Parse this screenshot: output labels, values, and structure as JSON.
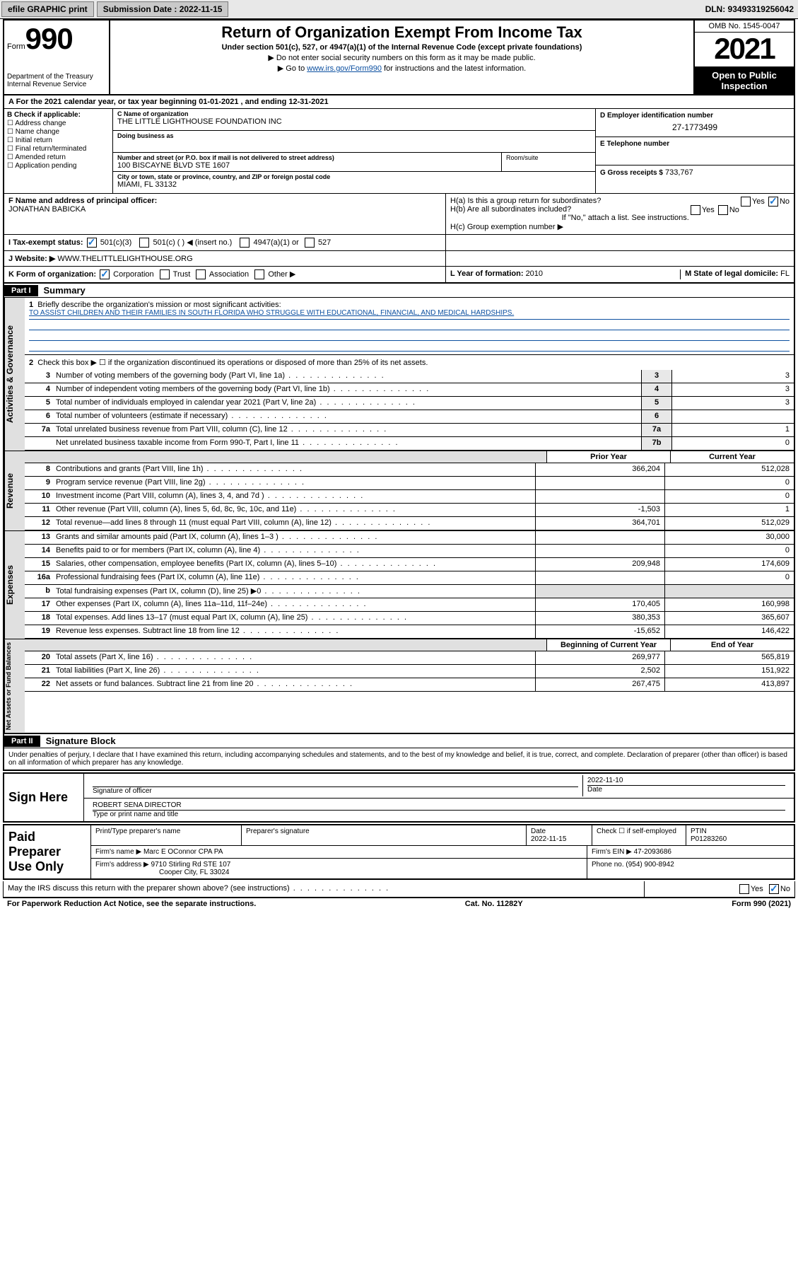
{
  "topbar": {
    "efile": "efile GRAPHIC print",
    "submission_label": "Submission Date : 2022-11-15",
    "dln": "DLN: 93493319256042"
  },
  "header": {
    "form_prefix": "Form",
    "form_num": "990",
    "dept": "Department of the Treasury",
    "irs": "Internal Revenue Service",
    "title": "Return of Organization Exempt From Income Tax",
    "sub1": "Under section 501(c), 527, or 4947(a)(1) of the Internal Revenue Code (except private foundations)",
    "sub2": "▶ Do not enter social security numbers on this form as it may be made public.",
    "sub3_pre": "▶ Go to ",
    "sub3_link": "www.irs.gov/Form990",
    "sub3_post": " for instructions and the latest information.",
    "omb": "OMB No. 1545-0047",
    "year": "2021",
    "open": "Open to Public Inspection"
  },
  "rowA": "A For the 2021 calendar year, or tax year beginning 01-01-2021   , and ending 12-31-2021",
  "colB": {
    "head": "B Check if applicable:",
    "items": [
      "Address change",
      "Name change",
      "Initial return",
      "Final return/terminated",
      "Amended return",
      "Application pending"
    ]
  },
  "colC": {
    "name_label": "C Name of organization",
    "name": "THE LITTLE LIGHTHOUSE FOUNDATION INC",
    "dba_label": "Doing business as",
    "dba": "",
    "addr_label": "Number and street (or P.O. box if mail is not delivered to street address)",
    "room_label": "Room/suite",
    "addr": "100 BISCAYNE BLVD STE 1607",
    "city_label": "City or town, state or province, country, and ZIP or foreign postal code",
    "city": "MIAMI, FL  33132"
  },
  "colD": {
    "ein_label": "D Employer identification number",
    "ein": "27-1773499",
    "phone_label": "E Telephone number",
    "phone": "",
    "gross_label": "G Gross receipts $",
    "gross": "733,767"
  },
  "rowF": {
    "label": "F  Name and address of principal officer:",
    "name": "JONATHAN BABICKA"
  },
  "rowH": {
    "ha": "H(a)  Is this a group return for subordinates?",
    "ha_yes": "Yes",
    "ha_no": "No",
    "hb": "H(b)  Are all subordinates included?",
    "hb_yes": "Yes",
    "hb_no": "No",
    "hb_note": "If \"No,\" attach a list. See instructions.",
    "hc": "H(c)  Group exemption number ▶"
  },
  "rowI": {
    "label": "I   Tax-exempt status:",
    "opts": [
      "501(c)(3)",
      "501(c) (  ) ◀ (insert no.)",
      "4947(a)(1) or",
      "527"
    ]
  },
  "rowJ": {
    "label": "J   Website: ▶",
    "value": "WWW.THELITTLELIGHTHOUSE.ORG"
  },
  "rowK": {
    "label": "K Form of organization:",
    "opts": [
      "Corporation",
      "Trust",
      "Association",
      "Other ▶"
    ]
  },
  "rowL": {
    "label": "L Year of formation: ",
    "value": "2010"
  },
  "rowM": {
    "label": "M State of legal domicile: ",
    "value": "FL"
  },
  "part1": {
    "label": "Part I",
    "title": "Summary",
    "side_ag": "Activities & Governance",
    "side_rev": "Revenue",
    "side_exp": "Expenses",
    "side_na": "Net Assets or Fund Balances",
    "q1": "Briefly describe the organization's mission or most significant activities:",
    "mission": "TO ASSIST CHILDREN AND THEIR FAMILIES IN SOUTH FLORIDA WHO STRUGGLE WITH EDUCATIONAL, FINANCIAL, AND MEDICAL HARDSHIPS.",
    "q2": "Check this box ▶ ☐ if the organization discontinued its operations or disposed of more than 25% of its net assets.",
    "lines_ag": [
      {
        "n": "3",
        "d": "Number of voting members of the governing body (Part VI, line 1a)",
        "box": "3",
        "v": "3"
      },
      {
        "n": "4",
        "d": "Number of independent voting members of the governing body (Part VI, line 1b)",
        "box": "4",
        "v": "3"
      },
      {
        "n": "5",
        "d": "Total number of individuals employed in calendar year 2021 (Part V, line 2a)",
        "box": "5",
        "v": "3"
      },
      {
        "n": "6",
        "d": "Total number of volunteers (estimate if necessary)",
        "box": "6",
        "v": ""
      },
      {
        "n": "7a",
        "d": "Total unrelated business revenue from Part VIII, column (C), line 12",
        "box": "7a",
        "v": "1"
      },
      {
        "n": "",
        "d": "Net unrelated business taxable income from Form 990-T, Part I, line 11",
        "box": "7b",
        "v": "0"
      }
    ],
    "prior_label": "Prior Year",
    "current_label": "Current Year",
    "lines_rev": [
      {
        "n": "8",
        "d": "Contributions and grants (Part VIII, line 1h)",
        "p": "366,204",
        "c": "512,028"
      },
      {
        "n": "9",
        "d": "Program service revenue (Part VIII, line 2g)",
        "p": "",
        "c": "0"
      },
      {
        "n": "10",
        "d": "Investment income (Part VIII, column (A), lines 3, 4, and 7d )",
        "p": "",
        "c": "0"
      },
      {
        "n": "11",
        "d": "Other revenue (Part VIII, column (A), lines 5, 6d, 8c, 9c, 10c, and 11e)",
        "p": "-1,503",
        "c": "1"
      },
      {
        "n": "12",
        "d": "Total revenue—add lines 8 through 11 (must equal Part VIII, column (A), line 12)",
        "p": "364,701",
        "c": "512,029"
      }
    ],
    "lines_exp": [
      {
        "n": "13",
        "d": "Grants and similar amounts paid (Part IX, column (A), lines 1–3 )",
        "p": "",
        "c": "30,000"
      },
      {
        "n": "14",
        "d": "Benefits paid to or for members (Part IX, column (A), line 4)",
        "p": "",
        "c": "0"
      },
      {
        "n": "15",
        "d": "Salaries, other compensation, employee benefits (Part IX, column (A), lines 5–10)",
        "p": "209,948",
        "c": "174,609"
      },
      {
        "n": "16a",
        "d": "Professional fundraising fees (Part IX, column (A), line 11e)",
        "p": "",
        "c": "0"
      },
      {
        "n": "b",
        "d": "Total fundraising expenses (Part IX, column (D), line 25) ▶0",
        "p": "",
        "c": "",
        "shaded": true
      },
      {
        "n": "17",
        "d": "Other expenses (Part IX, column (A), lines 11a–11d, 11f–24e)",
        "p": "170,405",
        "c": "160,998"
      },
      {
        "n": "18",
        "d": "Total expenses. Add lines 13–17 (must equal Part IX, column (A), line 25)",
        "p": "380,353",
        "c": "365,607"
      },
      {
        "n": "19",
        "d": "Revenue less expenses. Subtract line 18 from line 12",
        "p": "-15,652",
        "c": "146,422"
      }
    ],
    "begin_label": "Beginning of Current Year",
    "end_label": "End of Year",
    "lines_na": [
      {
        "n": "20",
        "d": "Total assets (Part X, line 16)",
        "p": "269,977",
        "c": "565,819"
      },
      {
        "n": "21",
        "d": "Total liabilities (Part X, line 26)",
        "p": "2,502",
        "c": "151,922"
      },
      {
        "n": "22",
        "d": "Net assets or fund balances. Subtract line 21 from line 20",
        "p": "267,475",
        "c": "413,897"
      }
    ]
  },
  "part2": {
    "label": "Part II",
    "title": "Signature Block",
    "text": "Under penalties of perjury, I declare that I have examined this return, including accompanying schedules and statements, and to the best of my knowledge and belief, it is true, correct, and complete. Declaration of preparer (other than officer) is based on all information of which preparer has any knowledge."
  },
  "sign": {
    "label": "Sign Here",
    "sig_label": "Signature of officer",
    "date_label": "Date",
    "date": "2022-11-10",
    "name": "ROBERT SENA  DIRECTOR",
    "name_label": "Type or print name and title"
  },
  "preparer": {
    "label": "Paid Preparer Use Only",
    "hdr_name": "Print/Type preparer's name",
    "hdr_sig": "Preparer's signature",
    "hdr_date": "Date",
    "date": "2022-11-15",
    "check_label": "Check ☐ if self-employed",
    "ptin_label": "PTIN",
    "ptin": "P01283260",
    "firm_name_label": "Firm's name     ▶",
    "firm_name": "Marc E OConnor CPA PA",
    "firm_ein_label": "Firm's EIN ▶",
    "firm_ein": "47-2093686",
    "firm_addr_label": "Firm's address ▶",
    "firm_addr": "9710 Stirling Rd STE 107",
    "firm_city": "Cooper City, FL  33024",
    "phone_label": "Phone no.",
    "phone": "(954) 900-8942"
  },
  "discuss": {
    "text": "May the IRS discuss this return with the preparer shown above? (see instructions)",
    "yes": "Yes",
    "no": "No"
  },
  "footer": {
    "left": "For Paperwork Reduction Act Notice, see the separate instructions.",
    "mid": "Cat. No. 11282Y",
    "right": "Form 990 (2021)"
  }
}
